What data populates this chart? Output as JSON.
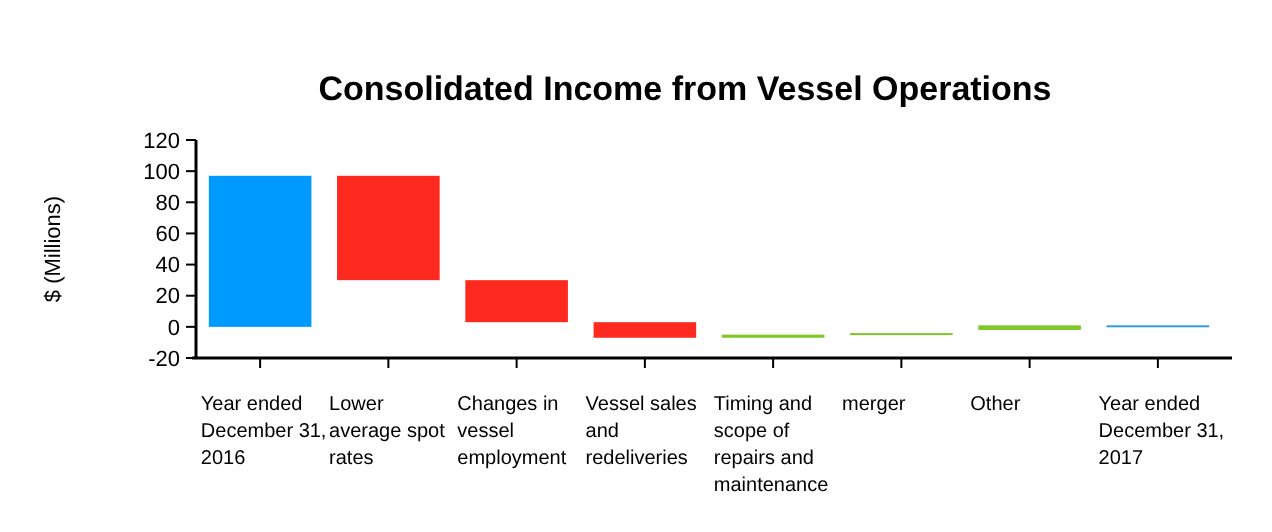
{
  "chart_data": {
    "type": "bar",
    "title": "Consolidated Income from Vessel Operations",
    "ylabel": "$ (Millions)",
    "categories": [
      "Year ended December 31, 2016",
      "Lower average spot rates",
      "Changes in vessel employment",
      "Vessel sales and redeliveries",
      "Timing and scope of repairs and maintenance",
      "merger",
      "Other",
      "Year ended December 31, 2017"
    ],
    "values": [
      97,
      -67,
      -27,
      -10,
      2,
      1,
      3,
      1
    ],
    "base": [
      0,
      97,
      30,
      3,
      -7,
      -5,
      -2,
      0
    ],
    "colors": [
      "#0099ff",
      "#ff2a1f",
      "#ff2a1f",
      "#ff2a1f",
      "#7ec82a",
      "#7ec82a",
      "#7ec82a",
      "#3399dd"
    ],
    "ylim": [
      -20,
      120
    ],
    "yticks": [
      -20,
      0,
      20,
      40,
      60,
      80,
      100,
      120
    ],
    "grid": false
  }
}
